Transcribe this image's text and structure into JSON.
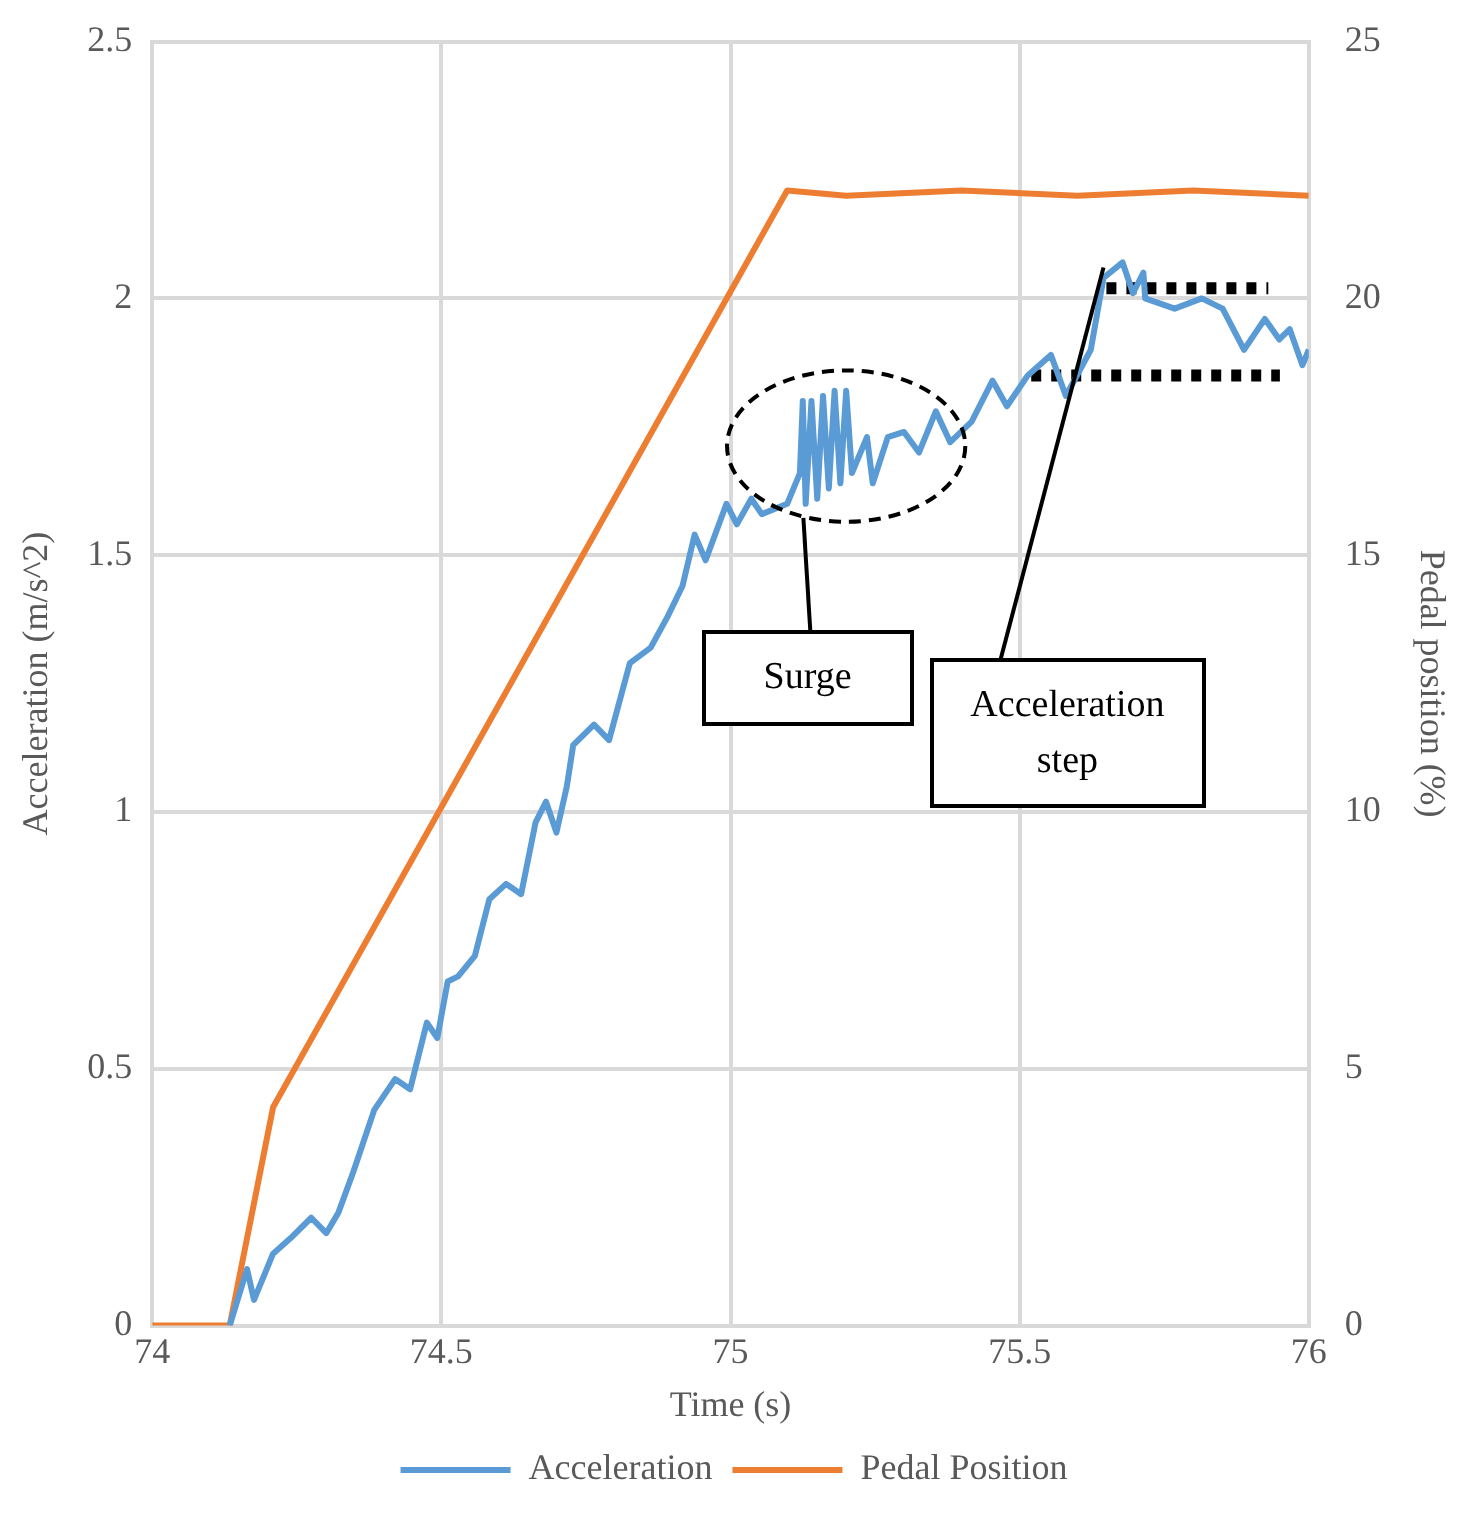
{
  "chart_data": {
    "type": "line",
    "xlabel": "Time (s)",
    "ylabel": "Acceleration (m/s^2)",
    "y2label": "Pedal position (%)",
    "xlim": [
      74,
      76
    ],
    "xticks": [
      74,
      74.5,
      75,
      75.5,
      76
    ],
    "ylim": [
      0,
      2.5
    ],
    "yticks": [
      0,
      0.5,
      1,
      1.5,
      2,
      2.5
    ],
    "y2lim": [
      0,
      25
    ],
    "y2ticks": [
      0,
      5,
      10,
      15,
      20,
      25
    ],
    "grid": true,
    "legend": "bottom",
    "marker": "none",
    "line_style": "solid",
    "series": [
      {
        "name": "Acceleration",
        "color": "#5b9bd5",
        "x": [
          74.134,
          74.164,
          74.176,
          74.209,
          74.239,
          74.275,
          74.301,
          74.322,
          74.348,
          74.384,
          74.42,
          74.446,
          74.475,
          74.493,
          74.511,
          74.529,
          74.558,
          74.583,
          74.612,
          74.638,
          74.663,
          74.681,
          74.699,
          74.717,
          74.728,
          74.764,
          74.79,
          74.826,
          74.862,
          74.891,
          74.917,
          74.938,
          74.957,
          74.993,
          75.011,
          75.036,
          75.054,
          75.098,
          75.12,
          75.125,
          75.13,
          75.14,
          75.15,
          75.16,
          75.17,
          75.18,
          75.19,
          75.2,
          75.21,
          75.236,
          75.246,
          75.272,
          75.3,
          75.326,
          75.355,
          75.38,
          75.417,
          75.453,
          75.478,
          75.514,
          75.554,
          75.58,
          75.623,
          75.645,
          75.678,
          75.696,
          75.714,
          75.717,
          75.768,
          75.815,
          75.851,
          75.888,
          75.924,
          75.949,
          75.967,
          75.989,
          76
        ],
        "values": [
          0,
          0.11,
          0.05,
          0.14,
          0.17,
          0.21,
          0.18,
          0.22,
          0.3,
          0.42,
          0.48,
          0.46,
          0.59,
          0.56,
          0.67,
          0.68,
          0.72,
          0.83,
          0.86,
          0.84,
          0.98,
          1.02,
          0.96,
          1.05,
          1.13,
          1.17,
          1.14,
          1.29,
          1.32,
          1.38,
          1.44,
          1.54,
          1.49,
          1.6,
          1.56,
          1.61,
          1.58,
          1.6,
          1.66,
          1.8,
          1.6,
          1.8,
          1.61,
          1.81,
          1.63,
          1.82,
          1.64,
          1.82,
          1.66,
          1.73,
          1.64,
          1.73,
          1.74,
          1.7,
          1.78,
          1.72,
          1.76,
          1.84,
          1.79,
          1.85,
          1.89,
          1.81,
          1.9,
          2.04,
          2.07,
          2.01,
          2.05,
          2,
          1.98,
          2,
          1.98,
          1.9,
          1.96,
          1.92,
          1.94,
          1.87,
          1.9
        ]
      },
      {
        "name": "Pedal Position",
        "color": "#ed7d31",
        "axis": "y2",
        "x": [
          74,
          74.134,
          74.209,
          75.098,
          75.2,
          75.4,
          75.6,
          75.8,
          76
        ],
        "values": [
          0,
          0,
          4.25,
          22.1,
          22,
          22.1,
          22,
          22.1,
          22
        ]
      },
      {
        "type": "line",
        "color": "#000000",
        "line_style": "dotted",
        "x": [
          75.65,
          75.93
        ],
        "values": [
          2.02,
          2.02
        ]
      },
      {
        "type": "line",
        "color": "#000000",
        "line_style": "dotted",
        "x": [
          75.52,
          75.95
        ],
        "values": [
          1.85,
          1.85
        ]
      }
    ],
    "annotations": [
      "Surge",
      {
        "text": "Acceleration step",
        "x": 75.645,
        "y": 2.06
      }
    ]
  }
}
